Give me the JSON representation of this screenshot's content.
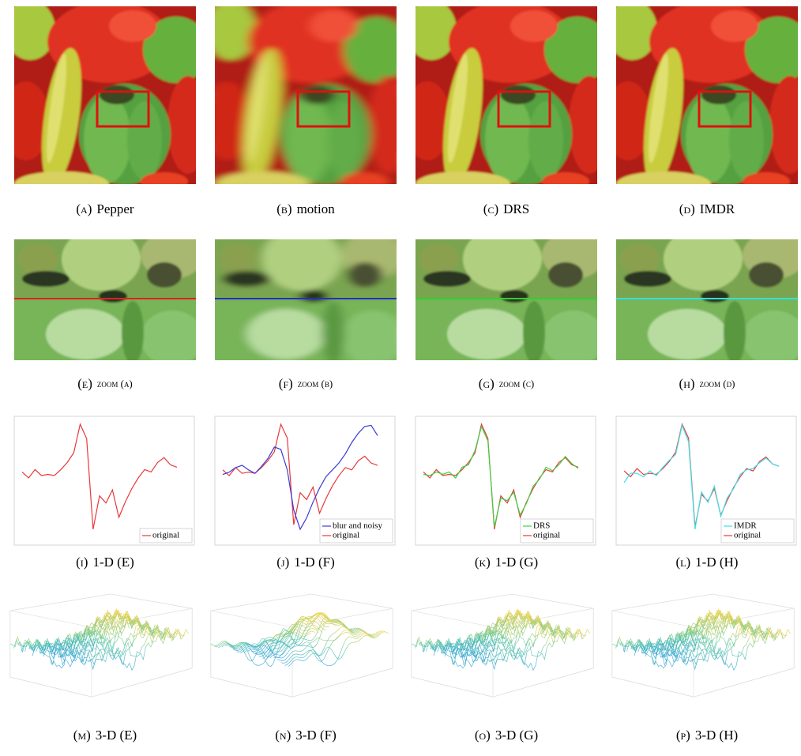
{
  "figure": {
    "rows": [
      {
        "panels": [
          {
            "label": "(a)",
            "caption": "Pepper"
          },
          {
            "label": "(b)",
            "caption": "motion"
          },
          {
            "label": "(c)",
            "caption": "DRS"
          },
          {
            "label": "(d)",
            "caption": "IMDR"
          }
        ]
      },
      {
        "panels": [
          {
            "label": "(e)",
            "caption": "zoom (a)"
          },
          {
            "label": "(f)",
            "caption": "zoom (b)"
          },
          {
            "label": "(g)",
            "caption": "zoom (c)"
          },
          {
            "label": "(h)",
            "caption": "zoom (d)"
          }
        ]
      },
      {
        "panels": [
          {
            "label": "(i)",
            "caption": "1-D (E)",
            "series": [
              {
                "name": "original",
                "color": "#e8383a",
                "values": [
                  60,
                  55,
                  62,
                  57,
                  58,
                  57,
                  62,
                  68,
                  76,
                  100,
                  88,
                  12,
                  40,
                  34,
                  45,
                  22,
                  35,
                  46,
                  55,
                  62,
                  60,
                  68,
                  72,
                  66,
                  64
                ]
              }
            ]
          },
          {
            "label": "(j)",
            "caption": "1-D (F)",
            "series": [
              {
                "name": "blur and noisy",
                "color": "#3a3ad8",
                "values": [
                  56,
                  58,
                  62,
                  64,
                  60,
                  57,
                  63,
                  70,
                  80,
                  78,
                  60,
                  25,
                  8,
                  18,
                  32,
                  44,
                  54,
                  60,
                  66,
                  74,
                  84,
                  92,
                  98,
                  99,
                  90
                ]
              },
              {
                "name": "original",
                "color": "#e8383a",
                "values": [
                  60,
                  55,
                  62,
                  57,
                  58,
                  57,
                  62,
                  68,
                  76,
                  100,
                  88,
                  12,
                  40,
                  34,
                  45,
                  22,
                  35,
                  46,
                  55,
                  62,
                  60,
                  68,
                  72,
                  66,
                  64
                ]
              }
            ]
          },
          {
            "label": "(k)",
            "caption": "1-D (G)",
            "series": [
              {
                "name": "DRS",
                "color": "#40d040",
                "values": [
                  58,
                  57,
                  60,
                  58,
                  60,
                  55,
                  64,
                  66,
                  78,
                  98,
                  86,
                  14,
                  38,
                  36,
                  43,
                  24,
                  34,
                  48,
                  54,
                  64,
                  61,
                  66,
                  73,
                  67,
                  63
                ]
              },
              {
                "name": "original",
                "color": "#e8383a",
                "values": [
                  60,
                  55,
                  62,
                  57,
                  58,
                  57,
                  62,
                  68,
                  76,
                  100,
                  88,
                  12,
                  40,
                  34,
                  45,
                  22,
                  35,
                  46,
                  55,
                  62,
                  60,
                  68,
                  72,
                  66,
                  64
                ]
              }
            ]
          },
          {
            "label": "(l)",
            "caption": "1-D (H)",
            "series": [
              {
                "name": "IMDR",
                "color": "#40e0e8",
                "values": [
                  50,
                  58,
                  58,
                  55,
                  60,
                  56,
                  63,
                  69,
                  74,
                  99,
                  85,
                  10,
                  42,
                  33,
                  47,
                  21,
                  37,
                  45,
                  57,
                  61,
                  62,
                  67,
                  71,
                  66,
                  64
                ]
              },
              {
                "name": "original",
                "color": "#e8383a",
                "values": [
                  60,
                  55,
                  62,
                  57,
                  58,
                  57,
                  62,
                  68,
                  76,
                  100,
                  88,
                  12,
                  40,
                  34,
                  45,
                  22,
                  35,
                  46,
                  55,
                  62,
                  60,
                  68,
                  72,
                  66,
                  64
                ]
              }
            ]
          }
        ]
      },
      {
        "panels": [
          {
            "label": "(m)",
            "caption": "3-D (E)"
          },
          {
            "label": "(n)",
            "caption": "3-D (F)"
          },
          {
            "label": "(o)",
            "caption": "3-D (G)"
          },
          {
            "label": "(p)",
            "caption": "3-D (H)"
          }
        ]
      }
    ]
  }
}
